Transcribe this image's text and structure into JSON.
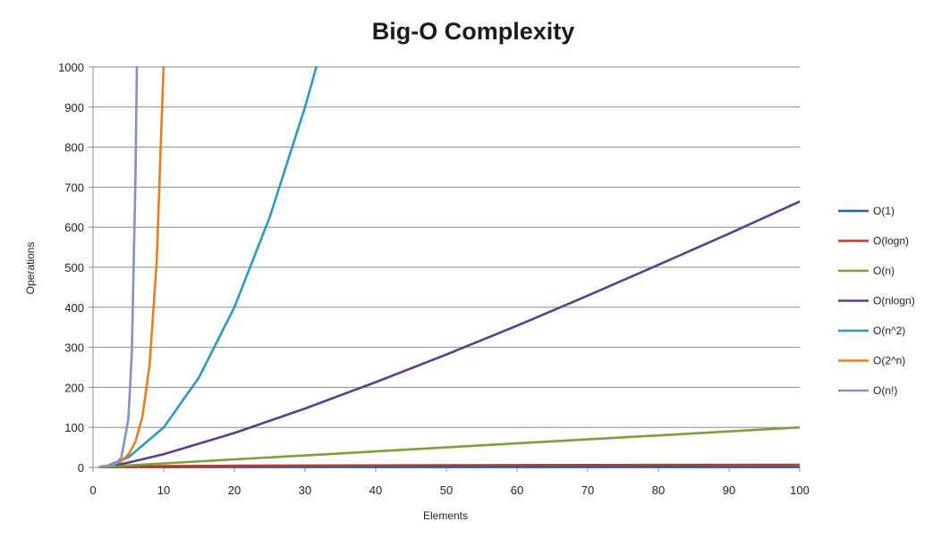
{
  "chart_data": {
    "type": "line",
    "title": "Big-O Complexity",
    "xlabel": "Elements",
    "ylabel": "Operations",
    "xlim": [
      0,
      100
    ],
    "ylim": [
      0,
      1000
    ],
    "x_ticks": [
      "0",
      "10",
      "20",
      "30",
      "40",
      "50",
      "60",
      "70",
      "80",
      "90",
      "100"
    ],
    "y_ticks": [
      "0",
      "100",
      "200",
      "300",
      "400",
      "500",
      "600",
      "700",
      "800",
      "900",
      "1000"
    ],
    "grid": "horizontal",
    "legend_position": "right",
    "series": [
      {
        "name": "O(1)",
        "color": "#1f5fa8",
        "x": [
          1,
          100
        ],
        "y": [
          1,
          1
        ]
      },
      {
        "name": "O(logn)",
        "color": "#c0392b",
        "x": [
          1,
          2,
          5,
          10,
          20,
          50,
          100
        ],
        "y": [
          0,
          1,
          2.3,
          3.3,
          4.3,
          5.6,
          6.6
        ]
      },
      {
        "name": "O(n)",
        "color": "#77a33a",
        "x": [
          1,
          10,
          20,
          30,
          40,
          50,
          60,
          70,
          80,
          90,
          100
        ],
        "y": [
          1,
          10,
          20,
          30,
          40,
          50,
          60,
          70,
          80,
          90,
          100
        ]
      },
      {
        "name": "O(nlogn)",
        "color": "#5b3f8c",
        "x": [
          1,
          2,
          5,
          10,
          20,
          30,
          40,
          50,
          60,
          70,
          80,
          90,
          100
        ],
        "y": [
          0,
          2,
          12,
          33,
          86,
          147,
          213,
          282,
          354,
          429,
          506,
          584,
          664
        ]
      },
      {
        "name": "O(n^2)",
        "color": "#2b9ac4",
        "x": [
          1,
          2,
          5,
          10,
          15,
          20,
          25,
          30,
          31.6
        ],
        "y": [
          1,
          4,
          25,
          100,
          225,
          400,
          625,
          900,
          1000
        ]
      },
      {
        "name": "O(2^n)",
        "color": "#e67e22",
        "x": [
          1,
          2,
          3,
          4,
          5,
          6,
          7,
          8,
          9,
          9.97
        ],
        "y": [
          2,
          4,
          8,
          16,
          32,
          64,
          128,
          256,
          512,
          1000
        ]
      },
      {
        "name": "O(n!)",
        "color": "#7f93c9",
        "x": [
          1,
          2,
          3,
          4,
          5,
          5.5,
          6,
          6.2
        ],
        "y": [
          1,
          2,
          6,
          24,
          120,
          287,
          720,
          1000
        ]
      }
    ]
  }
}
